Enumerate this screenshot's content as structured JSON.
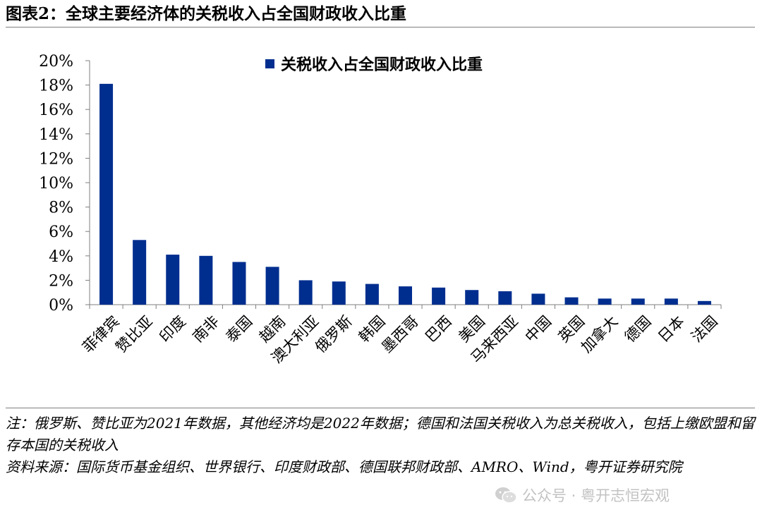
{
  "figure": {
    "title": "图表2：全球主要经济体的关税收入占全国财政收入比重"
  },
  "chart_data": {
    "type": "bar",
    "legend": "关税收入占全国财政收入比重",
    "legend_position": "top-center",
    "categories": [
      "菲律宾",
      "赞比亚",
      "印度",
      "南非",
      "泰国",
      "越南",
      "澳大利亚",
      "俄罗斯",
      "韩国",
      "墨西哥",
      "巴西",
      "美国",
      "马来西亚",
      "中国",
      "英国",
      "加拿大",
      "德国",
      "日本",
      "法国"
    ],
    "series": [
      {
        "name": "关税收入占全国财政收入比重",
        "values": [
          18.1,
          5.3,
          4.1,
          4.0,
          3.5,
          3.1,
          2.0,
          1.9,
          1.7,
          1.5,
          1.4,
          1.2,
          1.1,
          0.9,
          0.6,
          0.5,
          0.5,
          0.5,
          0.3
        ]
      }
    ],
    "ylim": [
      0,
      20
    ],
    "yticks": [
      "0%",
      "2%",
      "4%",
      "6%",
      "8%",
      "10%",
      "12%",
      "14%",
      "16%",
      "18%",
      "20%"
    ],
    "grid": false,
    "bar_color": "#002e8f"
  },
  "notes": {
    "note": "注：俄罗斯、赞比亚为2021年数据，其他经济均是2022年数据；德国和法国关税收入为总关税收入，包括上缴欧盟和留存本国的关税收入",
    "source": "资料来源：国际货币基金组织、世界银行、印度财政部、德国联邦财政部、AMRO、Wind，粤开证券研究院"
  },
  "watermark": {
    "text": "公众号 · 粤开志恒宏观",
    "icon": "wechat-icon"
  }
}
